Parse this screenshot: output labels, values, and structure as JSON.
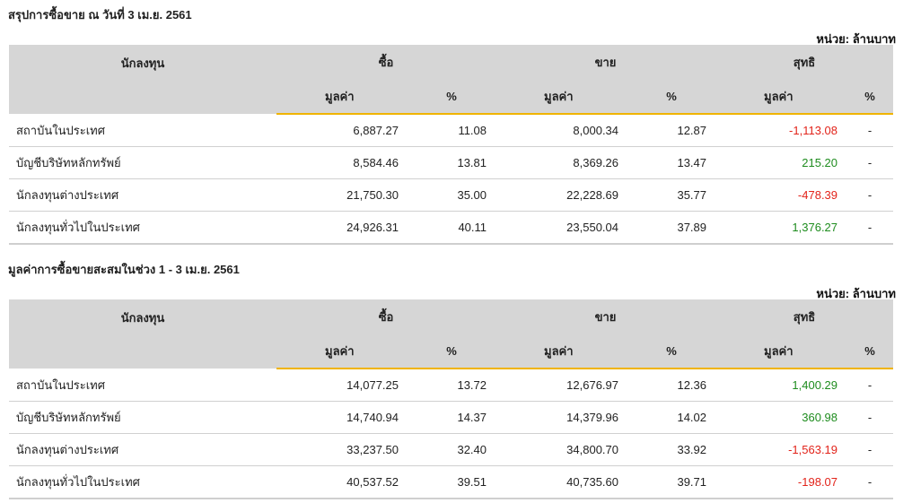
{
  "sections": [
    {
      "title": "สรุปการซื้อขาย ณ วันที่ 3 เม.ย. 2561",
      "unit": "หน่วย: ล้านบาท",
      "headers": {
        "investor": "นักลงทุน",
        "buy": "ซื้อ",
        "sell": "ขาย",
        "net": "สุทธิ",
        "value": "มูลค่า",
        "percent": "%"
      },
      "rows": [
        {
          "name": "สถาบันในประเทศ",
          "buy_value": "6,887.27",
          "buy_pct": "11.08",
          "sell_value": "8,000.34",
          "sell_pct": "12.87",
          "net_value": "-1,113.08",
          "net_sign": "neg",
          "net_pct": "-"
        },
        {
          "name": "บัญชีบริษัทหลักทรัพย์",
          "buy_value": "8,584.46",
          "buy_pct": "13.81",
          "sell_value": "8,369.26",
          "sell_pct": "13.47",
          "net_value": "215.20",
          "net_sign": "pos",
          "net_pct": "-"
        },
        {
          "name": "นักลงทุนต่างประเทศ",
          "buy_value": "21,750.30",
          "buy_pct": "35.00",
          "sell_value": "22,228.69",
          "sell_pct": "35.77",
          "net_value": "-478.39",
          "net_sign": "neg",
          "net_pct": "-"
        },
        {
          "name": "นักลงทุนทั่วไปในประเทศ",
          "buy_value": "24,926.31",
          "buy_pct": "40.11",
          "sell_value": "23,550.04",
          "sell_pct": "37.89",
          "net_value": "1,376.27",
          "net_sign": "pos",
          "net_pct": "-"
        }
      ]
    },
    {
      "title": "มูลค่าการซื้อขายสะสมในช่วง 1 - 3 เม.ย. 2561",
      "unit": "หน่วย: ล้านบาท",
      "headers": {
        "investor": "นักลงทุน",
        "buy": "ซื้อ",
        "sell": "ขาย",
        "net": "สุทธิ",
        "value": "มูลค่า",
        "percent": "%"
      },
      "rows": [
        {
          "name": "สถาบันในประเทศ",
          "buy_value": "14,077.25",
          "buy_pct": "13.72",
          "sell_value": "12,676.97",
          "sell_pct": "12.36",
          "net_value": "1,400.29",
          "net_sign": "pos",
          "net_pct": "-"
        },
        {
          "name": "บัญชีบริษัทหลักทรัพย์",
          "buy_value": "14,740.94",
          "buy_pct": "14.37",
          "sell_value": "14,379.96",
          "sell_pct": "14.02",
          "net_value": "360.98",
          "net_sign": "pos",
          "net_pct": "-"
        },
        {
          "name": "นักลงทุนต่างประเทศ",
          "buy_value": "33,237.50",
          "buy_pct": "32.40",
          "sell_value": "34,800.70",
          "sell_pct": "33.92",
          "net_value": "-1,563.19",
          "net_sign": "neg",
          "net_pct": "-"
        },
        {
          "name": "นักลงทุนทั่วไปในประเทศ",
          "buy_value": "40,537.52",
          "buy_pct": "39.51",
          "sell_value": "40,735.60",
          "sell_pct": "39.71",
          "net_value": "-198.07",
          "net_sign": "neg",
          "net_pct": "-"
        }
      ]
    }
  ]
}
